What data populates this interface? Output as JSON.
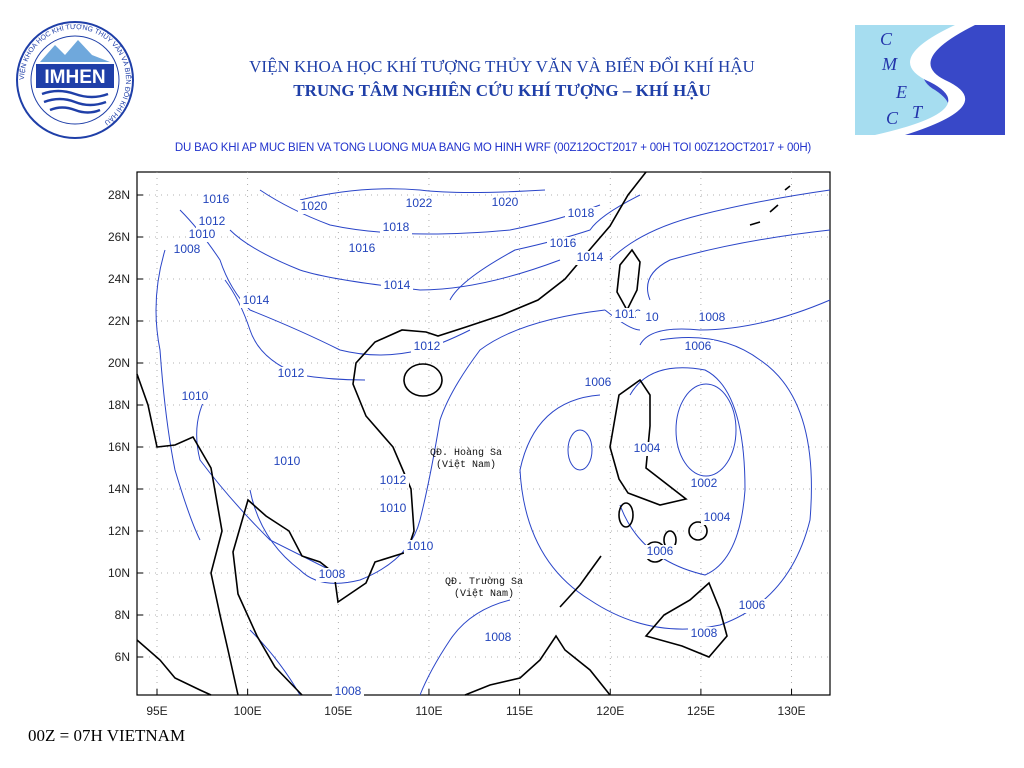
{
  "header": {
    "institute": "VIỆN KHOA HỌC KHÍ TƯỢNG THỦY VĂN VÀ BIẾN ĐỔI KHÍ HẬU",
    "center": "TRUNG TÂM NGHIÊN CỨU KHÍ TƯỢNG – KHÍ HẬU",
    "subtitle": "DU BAO KHI AP MUC BIEN VA TONG LUONG MUA BANG MO HINH WRF (00Z12OCT2017 + 00H TOI 00Z12OCT2017 + 00H)"
  },
  "logos": {
    "left": "IMHEN",
    "left_ring": "VIỆN KHOA HỌC KHÍ TƯỢNG THỦY VĂN VÀ BIẾN ĐỔI KHÍ HẬU",
    "right_letters": [
      "C",
      "M",
      "E",
      "T",
      "C"
    ]
  },
  "map": {
    "lon_labels": [
      "95E",
      "100E",
      "105E",
      "110E",
      "115E",
      "120E",
      "125E",
      "130E"
    ],
    "lat_labels": [
      "28N",
      "26N",
      "24N",
      "22N",
      "20N",
      "18N",
      "16N",
      "14N",
      "12N",
      "10N",
      "8N",
      "6N"
    ],
    "places": [
      "QĐ. Hoàng Sa",
      "(Việt Nam)",
      "QĐ. Trường Sa",
      "(Việt Nam)"
    ],
    "isobar_labels": [
      1016,
      1012,
      1010,
      1008,
      1020,
      1022,
      1020,
      1018,
      1018,
      1016,
      1016,
      1014,
      1014,
      1014,
      1012,
      10,
      1008,
      1006,
      1006,
      1012,
      1012,
      1010,
      1010,
      1004,
      1002,
      1004,
      1006,
      1006,
      1008,
      1008,
      1008,
      1010,
      1010,
      1012,
      1008
    ]
  },
  "footer": "00Z = 07H VIETNAM"
}
